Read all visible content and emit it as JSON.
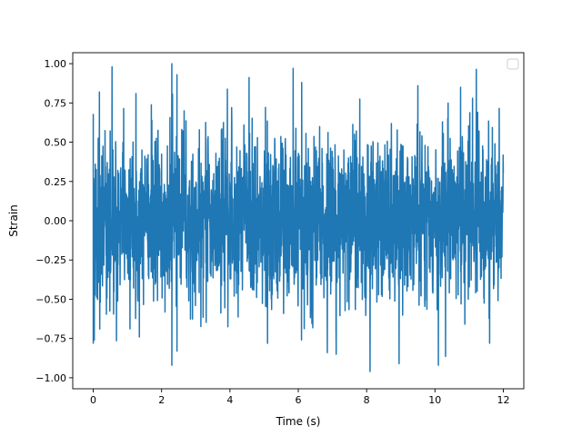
{
  "chart_data": {
    "type": "line",
    "title": "",
    "xlabel": "Time (s)",
    "ylabel": "Strain",
    "xlim": [
      -0.6,
      12.6
    ],
    "ylim": [
      -1.07,
      1.07
    ],
    "xticks": [
      0,
      2,
      4,
      6,
      8,
      10,
      12
    ],
    "xtick_labels": [
      "0",
      "2",
      "4",
      "6",
      "8",
      "10",
      "12"
    ],
    "yticks": [
      -1.0,
      -0.75,
      -0.5,
      -0.25,
      0.0,
      0.25,
      0.5,
      0.75,
      1.0
    ],
    "ytick_labels": [
      "−1.00",
      "−0.75",
      "−0.50",
      "−0.25",
      "0.00",
      "0.25",
      "0.50",
      "0.75",
      "1.00"
    ],
    "grid": false,
    "legend": {
      "placement": "top-right",
      "entries": []
    },
    "series": [
      {
        "color": "#1f77b4",
        "x_start": 0.0,
        "x_end": 12.0,
        "x_step": 0.005,
        "typical_range": [
          -0.5,
          0.5
        ],
        "max": 1.0,
        "min": -0.96,
        "peaks": [
          {
            "x": 0.0,
            "y": 0.68
          },
          {
            "x": 0.18,
            "y": 0.82
          },
          {
            "x": 0.55,
            "y": 0.98
          },
          {
            "x": 1.25,
            "y": 0.81
          },
          {
            "x": 2.3,
            "y": 1.0
          },
          {
            "x": 2.45,
            "y": 0.93
          },
          {
            "x": 4.05,
            "y": 0.72
          },
          {
            "x": 5.85,
            "y": 0.97
          },
          {
            "x": 6.1,
            "y": 0.88
          },
          {
            "x": 9.5,
            "y": 0.86
          },
          {
            "x": 10.75,
            "y": 0.85
          },
          {
            "x": 11.1,
            "y": 0.78
          },
          {
            "x": 0.0,
            "y": -0.78
          },
          {
            "x": 1.35,
            "y": -0.74
          },
          {
            "x": 2.3,
            "y": -0.92
          },
          {
            "x": 2.45,
            "y": -0.83
          },
          {
            "x": 5.1,
            "y": -0.78
          },
          {
            "x": 6.85,
            "y": -0.84
          },
          {
            "x": 8.1,
            "y": -0.96
          },
          {
            "x": 8.95,
            "y": -0.91
          },
          {
            "x": 10.1,
            "y": -0.92
          },
          {
            "x": 11.6,
            "y": -0.78
          }
        ]
      }
    ]
  }
}
